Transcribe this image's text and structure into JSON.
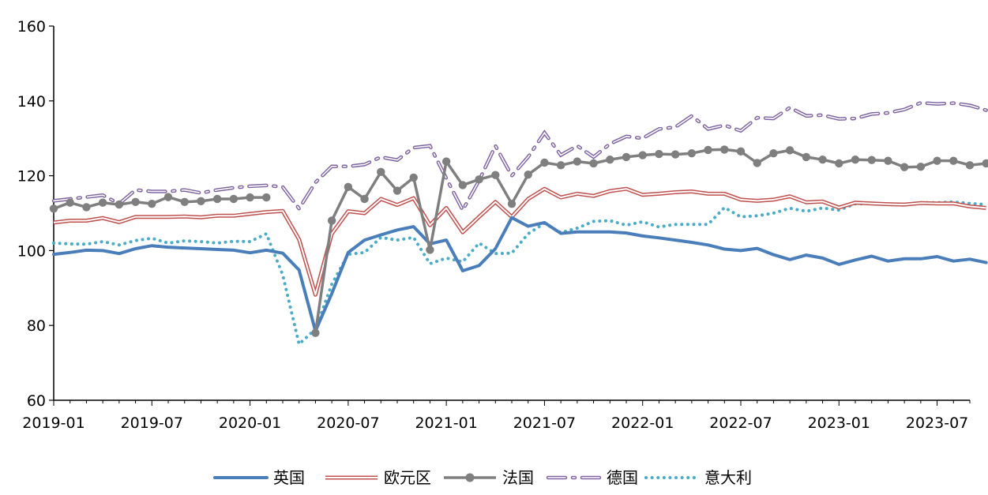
{
  "chart_data": {
    "type": "line",
    "title": "",
    "xlabel": "",
    "ylabel": "",
    "ylim": [
      60,
      160
    ],
    "yticks": [
      60,
      80,
      100,
      120,
      140,
      160
    ],
    "x_start": "2019-01",
    "x_end": "2023-09",
    "x_ticks": [
      "2019-01",
      "2019-07",
      "2020-01",
      "2020-07",
      "2021-01",
      "2021-07",
      "2022-01",
      "2022-07",
      "2023-01",
      "2023-07"
    ],
    "legend_position": "bottom",
    "grid": false,
    "series": [
      {
        "name": "英国",
        "color": "#4a7ebb",
        "style": "solid-thick",
        "values": [
          99.0,
          99.5,
          100.1,
          100.0,
          99.2,
          100.5,
          101.3,
          100.9,
          100.7,
          100.5,
          100.3,
          100.1,
          99.4,
          100.1,
          99.3,
          94.8,
          78.5,
          88.5,
          99.5,
          102.8,
          104.2,
          105.5,
          106.4,
          101.8,
          102.8,
          94.6,
          96.0,
          100.5,
          108.8,
          106.5,
          107.5,
          104.6,
          105.0,
          105.0,
          105.0,
          104.7,
          103.9,
          103.4,
          102.8,
          102.2,
          101.5,
          100.4,
          100.0,
          100.6,
          98.9,
          97.6,
          98.8,
          98.0,
          96.3,
          97.5,
          98.5,
          97.2,
          97.8,
          97.8,
          98.4,
          97.2,
          97.7,
          96.8
        ]
      },
      {
        "name": "欧元区",
        "color": "#c0504d",
        "style": "double",
        "values": [
          107.5,
          108.0,
          108.0,
          108.7,
          107.6,
          109.0,
          109.0,
          109.0,
          109.1,
          108.9,
          109.3,
          109.3,
          109.8,
          110.3,
          110.6,
          103.0,
          88.2,
          104.5,
          110.5,
          110.0,
          113.8,
          112.2,
          114.0,
          106.8,
          111.4,
          104.9,
          109.0,
          113.0,
          109.0,
          113.8,
          116.5,
          114.2,
          115.2,
          114.6,
          115.9,
          116.5,
          114.9,
          115.2,
          115.6,
          115.8,
          115.2,
          115.2,
          113.6,
          113.3,
          113.6,
          114.5,
          112.9,
          113.1,
          111.5,
          112.8,
          112.6,
          112.4,
          112.3,
          112.7,
          112.6,
          112.6,
          111.8,
          111.4
        ]
      },
      {
        "name": "法国",
        "color": "#7f7f7f",
        "style": "solid-marker",
        "values": [
          111.2,
          112.8,
          111.6,
          112.8,
          112.3,
          113.0,
          112.5,
          114.3,
          113.0,
          113.2,
          113.8,
          113.8,
          114.2,
          114.2,
          null,
          null,
          78.0,
          108.0,
          117.0,
          113.8,
          121.0,
          116.0,
          119.5,
          100.2,
          123.8,
          117.5,
          119.0,
          120.2,
          112.5,
          120.3,
          123.5,
          122.8,
          123.8,
          123.3,
          124.3,
          125.0,
          125.5,
          125.8,
          125.7,
          126.0,
          126.9,
          127.0,
          126.5,
          123.4,
          126.0,
          126.8,
          125.0,
          124.3,
          123.3,
          124.3,
          124.2,
          124.0,
          122.3,
          122.4,
          124.0,
          124.0,
          122.8,
          123.3
        ]
      },
      {
        "name": "德国",
        "color": "#8064a2",
        "style": "dash-dot",
        "values": [
          113.3,
          113.8,
          114.3,
          114.8,
          112.5,
          116.2,
          115.8,
          115.8,
          116.2,
          115.4,
          116.2,
          116.8,
          117.2,
          117.4,
          117.0,
          111.2,
          118.2,
          122.5,
          122.5,
          123.0,
          125.0,
          124.2,
          127.5,
          128.0,
          119.3,
          110.8,
          118.7,
          128.0,
          120.0,
          125.0,
          131.5,
          125.5,
          128.0,
          125.0,
          128.5,
          130.5,
          130.0,
          132.5,
          133.0,
          136.0,
          132.5,
          133.5,
          132.0,
          135.5,
          135.3,
          138.2,
          136.0,
          136.2,
          135.2,
          135.3,
          136.5,
          136.8,
          137.7,
          139.5,
          139.2,
          139.4,
          138.8,
          137.5
        ]
      },
      {
        "name": "意大利",
        "color": "#4bacc6",
        "style": "dotted",
        "values": [
          102.0,
          101.8,
          101.7,
          102.4,
          101.5,
          102.7,
          103.3,
          102.0,
          102.6,
          102.4,
          102.0,
          102.5,
          102.4,
          104.5,
          93.5,
          75.0,
          79.0,
          91.0,
          99.0,
          99.5,
          103.5,
          102.8,
          103.5,
          96.5,
          98.0,
          97.0,
          102.0,
          99.2,
          99.3,
          104.5,
          107.3,
          104.8,
          106.0,
          107.8,
          108.0,
          106.8,
          107.7,
          106.3,
          107.0,
          107.0,
          107.0,
          111.5,
          109.0,
          109.3,
          110.0,
          111.3,
          110.5,
          111.4,
          110.8,
          112.5,
          112.5,
          112.3,
          112.2,
          112.8,
          112.8,
          113.0,
          112.6,
          112.3
        ]
      }
    ]
  }
}
